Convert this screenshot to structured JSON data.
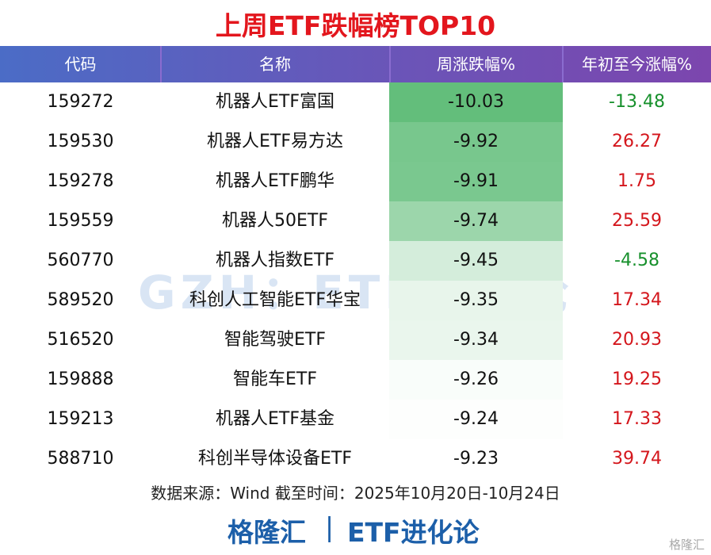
{
  "title": "上周ETF跌幅榜TOP10",
  "table": {
    "columns": [
      "代码",
      "名称",
      "周涨跌幅%",
      "年初至今涨幅%"
    ],
    "rows": [
      [
        "159272",
        "机器人ETF富国",
        -10.03,
        -13.48
      ],
      [
        "159530",
        "机器人ETF易方达",
        -9.92,
        26.27
      ],
      [
        "159278",
        "机器人ETF鹏华",
        -9.91,
        1.75
      ],
      [
        "159559",
        "机器人50ETF",
        -9.74,
        25.59
      ],
      [
        "560770",
        "机器人指数ETF",
        -9.45,
        -4.58
      ],
      [
        "589520",
        "科创人工智能ETF华宝",
        -9.35,
        17.34
      ],
      [
        "516520",
        "智能驾驶ETF",
        -9.34,
        20.93
      ],
      [
        "159888",
        "智能车ETF",
        -9.26,
        19.25
      ],
      [
        "159213",
        "机器人ETF基金",
        -9.24,
        17.33
      ],
      [
        "588710",
        "科创半导体设备ETF",
        -9.23,
        39.74
      ]
    ]
  },
  "note": "数据来源：Wind 截至时间：2025年10月20日-10月24日",
  "footer": {
    "left": "格隆汇",
    "right": "ETF进化论"
  },
  "watermark": "GZH：ETF进化论",
  "logo": "格隆汇",
  "colors": {
    "up": "#d4161c",
    "down": "#17902c",
    "heat": "#63be7b"
  }
}
